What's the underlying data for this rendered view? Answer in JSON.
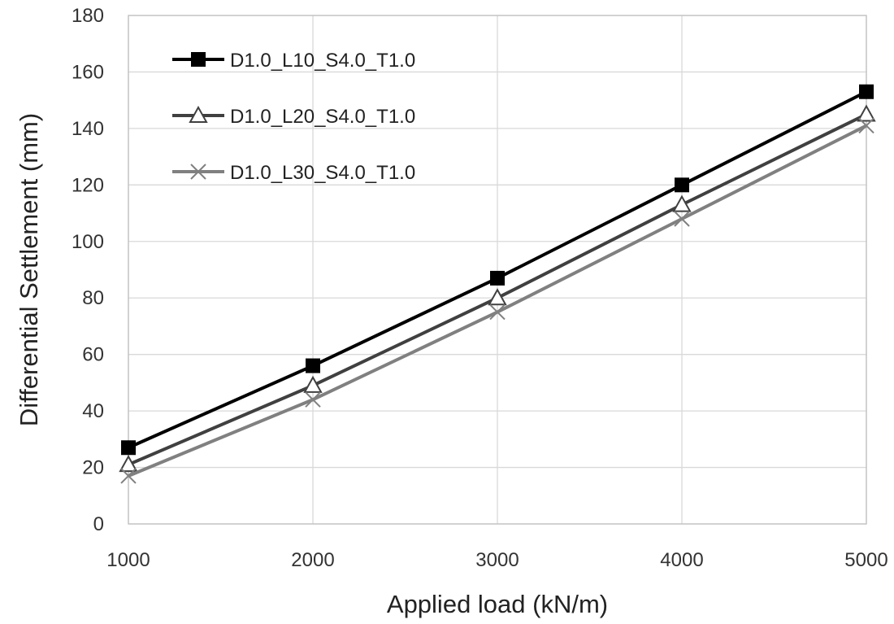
{
  "chart_data": {
    "type": "line",
    "title": "",
    "xlabel": "Applied load (kN/m)",
    "ylabel": "Differential Settlement (mm)",
    "x": [
      1000,
      2000,
      3000,
      4000,
      5000
    ],
    "xlim": [
      1000,
      5000
    ],
    "ylim": [
      0,
      180
    ],
    "x_ticks": [
      1000,
      2000,
      3000,
      4000,
      5000
    ],
    "y_ticks": [
      0,
      20,
      40,
      60,
      80,
      100,
      120,
      140,
      160,
      180
    ],
    "grid": true,
    "legend_position": "top-left",
    "series": [
      {
        "name": "D1.0_L10_S4.0_T1.0",
        "values": [
          27,
          56,
          87,
          120,
          153
        ],
        "color": "#000000",
        "marker": "square"
      },
      {
        "name": "D1.0_L20_S4.0_T1.0",
        "values": [
          21,
          49,
          80,
          113,
          145
        ],
        "color": "#404040",
        "marker": "triangle"
      },
      {
        "name": "D1.0_L30_S4.0_T1.0",
        "values": [
          17,
          44,
          75,
          108,
          141
        ],
        "color": "#808080",
        "marker": "x"
      }
    ]
  }
}
